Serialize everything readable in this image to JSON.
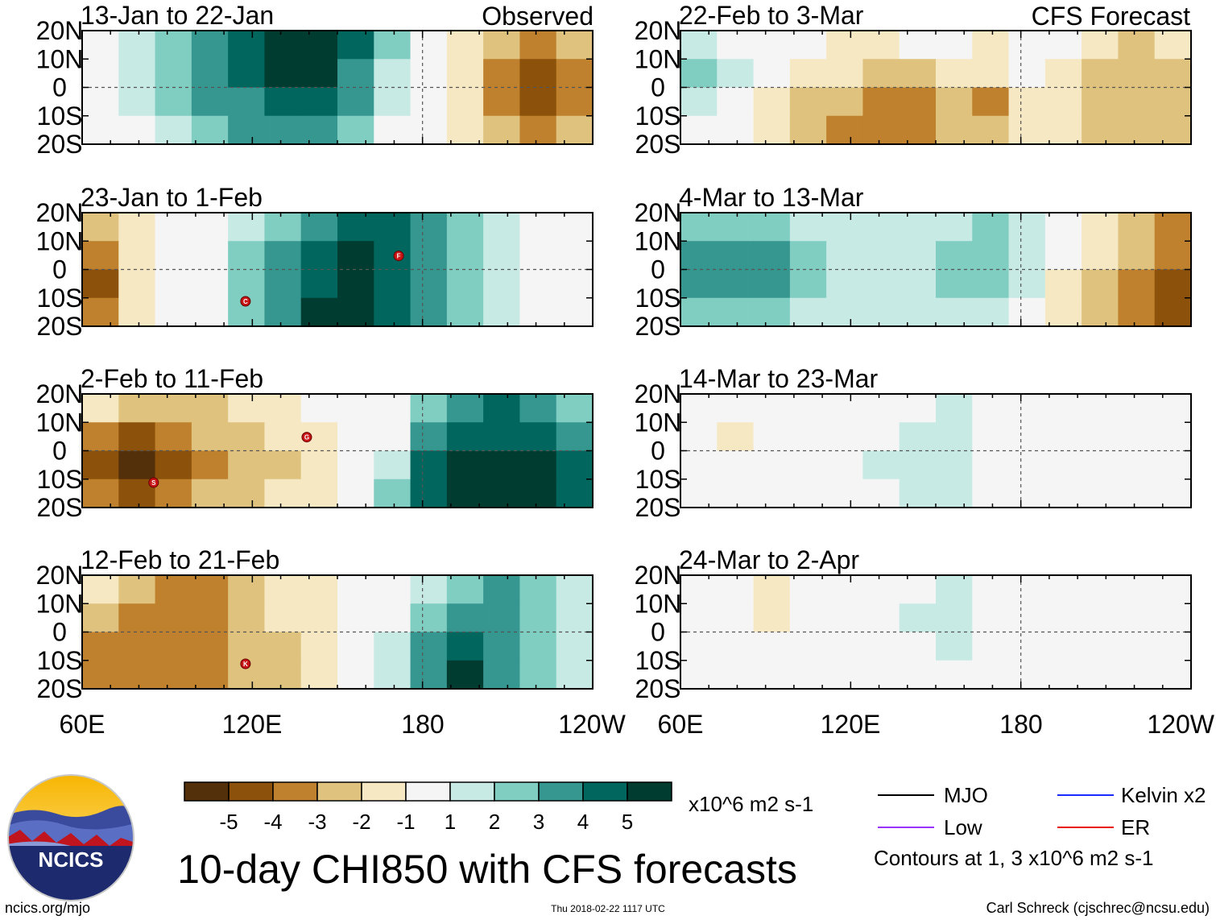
{
  "chart_data": {
    "type": "heatmap",
    "title": "10-day CHI850 with CFS forecasts",
    "units": "x10^6 m2 s-1",
    "xlim": [
      "60E",
      "120W"
    ],
    "x_ticks": [
      "60E",
      "120E",
      "180",
      "120W"
    ],
    "y_ticks": [
      "20N",
      "10N",
      "0",
      "10S",
      "20S"
    ],
    "ylim": [
      -20,
      20
    ],
    "columns": [
      {
        "name": "Observed",
        "label": "Observed"
      },
      {
        "name": "CFS Forecast",
        "label": "CFS Forecast"
      }
    ],
    "panels": [
      {
        "period": "13-Jan to 22-Jan",
        "source": "Observed",
        "cells": [
          [
            0.5,
            1,
            2,
            3,
            4,
            5,
            5,
            4,
            2,
            0.5,
            -1,
            -2,
            -3,
            -2
          ],
          [
            0.5,
            1,
            2,
            3,
            4,
            5,
            5,
            3,
            1,
            0,
            -1,
            -3,
            -4,
            -3
          ],
          [
            0,
            1,
            2,
            3,
            3,
            4,
            4,
            3,
            1,
            0,
            -1,
            -3,
            -4,
            -3
          ],
          [
            0,
            0.5,
            1,
            2,
            3,
            3,
            3,
            2,
            0.5,
            0,
            -1,
            -2,
            -3,
            -2
          ]
        ],
        "tc": []
      },
      {
        "period": "23-Jan to 1-Feb",
        "source": "Observed",
        "cells": [
          [
            -2,
            -1,
            0,
            0.5,
            1,
            2,
            3,
            4,
            4,
            3,
            2,
            1,
            0.5,
            0
          ],
          [
            -3,
            -1,
            0,
            0.5,
            2,
            3,
            4,
            5,
            4,
            3,
            2,
            1,
            0.5,
            0
          ],
          [
            -4,
            -1,
            0,
            0.5,
            2,
            3,
            4,
            5,
            4,
            3,
            2,
            1,
            0.5,
            0
          ],
          [
            -3,
            -1,
            0,
            0.5,
            2,
            3,
            5,
            5,
            4,
            3,
            2,
            1,
            0.5,
            0
          ]
        ],
        "tc": [
          "C",
          "F"
        ]
      },
      {
        "period": "2-Feb to 11-Feb",
        "source": "Observed",
        "cells": [
          [
            -1,
            -2,
            -2,
            -2,
            -1,
            -1,
            0,
            0,
            0,
            2,
            3,
            4,
            3,
            2
          ],
          [
            -3,
            -4,
            -3,
            -2,
            -2,
            -1,
            -1,
            0,
            0,
            3,
            4,
            4,
            4,
            3
          ],
          [
            -4,
            -5,
            -4,
            -3,
            -2,
            -2,
            -1,
            0,
            1,
            4,
            5,
            5,
            5,
            4
          ],
          [
            -3,
            -4,
            -3,
            -2,
            -2,
            -1,
            -1,
            0,
            2,
            4,
            5,
            5,
            5,
            4
          ]
        ],
        "tc": [
          "S",
          "G"
        ]
      },
      {
        "period": "12-Feb to 21-Feb",
        "source": "Observed",
        "cells": [
          [
            -1,
            -2,
            -3,
            -3,
            -2,
            -1,
            -1,
            0,
            0,
            1,
            2,
            3,
            2,
            1
          ],
          [
            -2,
            -3,
            -3,
            -3,
            -2,
            -1,
            -1,
            0,
            0,
            2,
            3,
            3,
            2,
            1
          ],
          [
            -3,
            -3,
            -3,
            -3,
            -2,
            -2,
            -1,
            0,
            1,
            3,
            4,
            3,
            2,
            1
          ],
          [
            -3,
            -3,
            -3,
            -3,
            -2,
            -2,
            -1,
            0,
            1,
            3,
            5,
            3,
            2,
            1
          ]
        ],
        "tc": [
          "K"
        ]
      },
      {
        "period": "22-Feb to 3-Mar",
        "source": "CFS Forecast",
        "cells": [
          [
            1,
            0,
            0,
            0,
            -1,
            -1,
            0,
            0,
            -1,
            0,
            0,
            -1,
            -2,
            -1
          ],
          [
            2,
            1,
            0,
            -1,
            -1,
            -2,
            -2,
            -1,
            -1,
            0,
            -1,
            -2,
            -2,
            -2
          ],
          [
            1,
            0,
            -1,
            -2,
            -2,
            -3,
            -3,
            -2,
            -3,
            -1,
            -1,
            -2,
            -2,
            -2
          ],
          [
            0,
            0,
            -1,
            -2,
            -3,
            -3,
            -3,
            -2,
            -2,
            -1,
            -1,
            -2,
            -2,
            -2
          ]
        ],
        "tc": []
      },
      {
        "period": "4-Mar to 13-Mar",
        "source": "CFS Forecast",
        "cells": [
          [
            2,
            2,
            2,
            1,
            1,
            1,
            1,
            1,
            2,
            1,
            0,
            -1,
            -2,
            -3
          ],
          [
            3,
            3,
            3,
            2,
            1,
            1,
            1,
            2,
            2,
            1,
            0,
            -1,
            -2,
            -3
          ],
          [
            3,
            3,
            3,
            2,
            1,
            1,
            1,
            2,
            2,
            1,
            -1,
            -2,
            -3,
            -4
          ],
          [
            2,
            2,
            2,
            1,
            1,
            1,
            1,
            1,
            1,
            0,
            -1,
            -2,
            -3,
            -4
          ]
        ],
        "tc": []
      },
      {
        "period": "14-Mar to 23-Mar",
        "source": "CFS Forecast",
        "cells": [
          [
            0,
            0,
            0,
            0,
            0,
            0,
            0.5,
            1,
            0.5,
            0,
            0,
            0,
            0,
            0
          ],
          [
            0,
            -1,
            0,
            0,
            0,
            0.5,
            1,
            1,
            0.5,
            0,
            0,
            0,
            0,
            0
          ],
          [
            0,
            0,
            0,
            0,
            0,
            1,
            1,
            1,
            0.5,
            0,
            0,
            0,
            0,
            0
          ],
          [
            0,
            0,
            0,
            0,
            0,
            0.5,
            1,
            1,
            0,
            0,
            0,
            0,
            0,
            -0.5
          ]
        ],
        "tc": []
      },
      {
        "period": "24-Mar to 2-Apr",
        "source": "CFS Forecast",
        "cells": [
          [
            0,
            0,
            -1,
            0,
            0,
            0,
            0.5,
            1,
            0.5,
            0,
            0,
            0,
            0,
            0
          ],
          [
            0,
            0,
            -1,
            0,
            0,
            0,
            1,
            1,
            0.5,
            0,
            0,
            0,
            0,
            0
          ],
          [
            0,
            0,
            0,
            0,
            0,
            0,
            0.5,
            1,
            0.5,
            0,
            0,
            0,
            0,
            0
          ],
          [
            0,
            0,
            0,
            0,
            0,
            0,
            0,
            0,
            0,
            0,
            -0.5,
            -0.5,
            -0.5,
            0
          ]
        ],
        "tc": []
      }
    ],
    "colorbar": {
      "labels": [
        "-5",
        "-4",
        "-3",
        "-2",
        "-1",
        "1",
        "2",
        "3",
        "4",
        "5"
      ],
      "colors": [
        "#54300a",
        "#8c510a",
        "#bf812d",
        "#dfc27d",
        "#f6e8c3",
        "#f5f5f5",
        "#c7eae5",
        "#80cdc1",
        "#35978f",
        "#01665e",
        "#003c30"
      ]
    },
    "legend": [
      {
        "label": "MJO",
        "color": "#000000"
      },
      {
        "label": "Kelvin x2",
        "color": "#1a2cff"
      },
      {
        "label": "Low",
        "color": "#9933ff"
      },
      {
        "label": "ER",
        "color": "#e8140c"
      }
    ],
    "contour_note": "Contours at 1, 3 x10^6 m2 s-1"
  },
  "branding": {
    "logo_text": "NCICS",
    "site": "ncics.org/mjo",
    "timestamp": "Thu 2018-02-22 1117 UTC",
    "author": "Carl Schreck (cjschrec@ncsu.edu)"
  }
}
